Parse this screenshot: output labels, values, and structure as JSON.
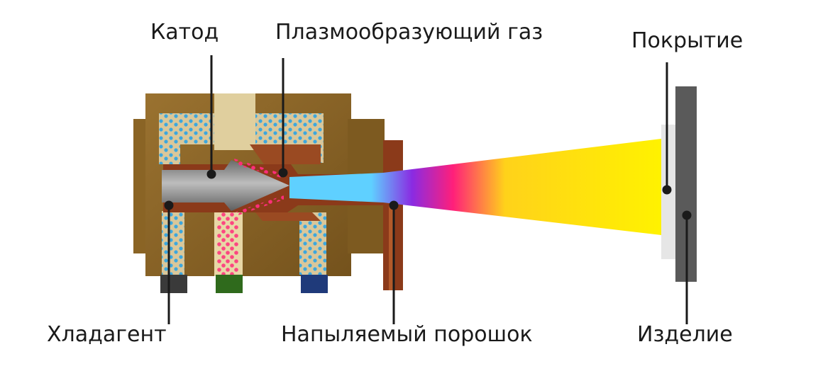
{
  "labels": {
    "cathode": "Катод",
    "plasma_gas": "Плазмообразующий газ",
    "coating": "Покрытие",
    "coolant": "Хладагент",
    "sprayed_powder": "Напыляемый порошок",
    "workpiece": "Изделие"
  },
  "colors": {
    "torch_body": "#8a6425",
    "torch_dark": "#6e4c18",
    "coolant_channel": "#d9c79a",
    "coolant_dots": "#2aa3e6",
    "anode": "#8b3a1a",
    "cathode": "#8e8e8e",
    "plasma_core": "#5fd0ff",
    "jet_violet": "#8a2be2",
    "jet_magenta": "#ff1f7a",
    "jet_yellow": "#fff200",
    "powder": "#ff2d7a",
    "coating": "#e6e6e6",
    "workpiece": "#5a5a5a",
    "leader_line": "#1a1a1a"
  }
}
